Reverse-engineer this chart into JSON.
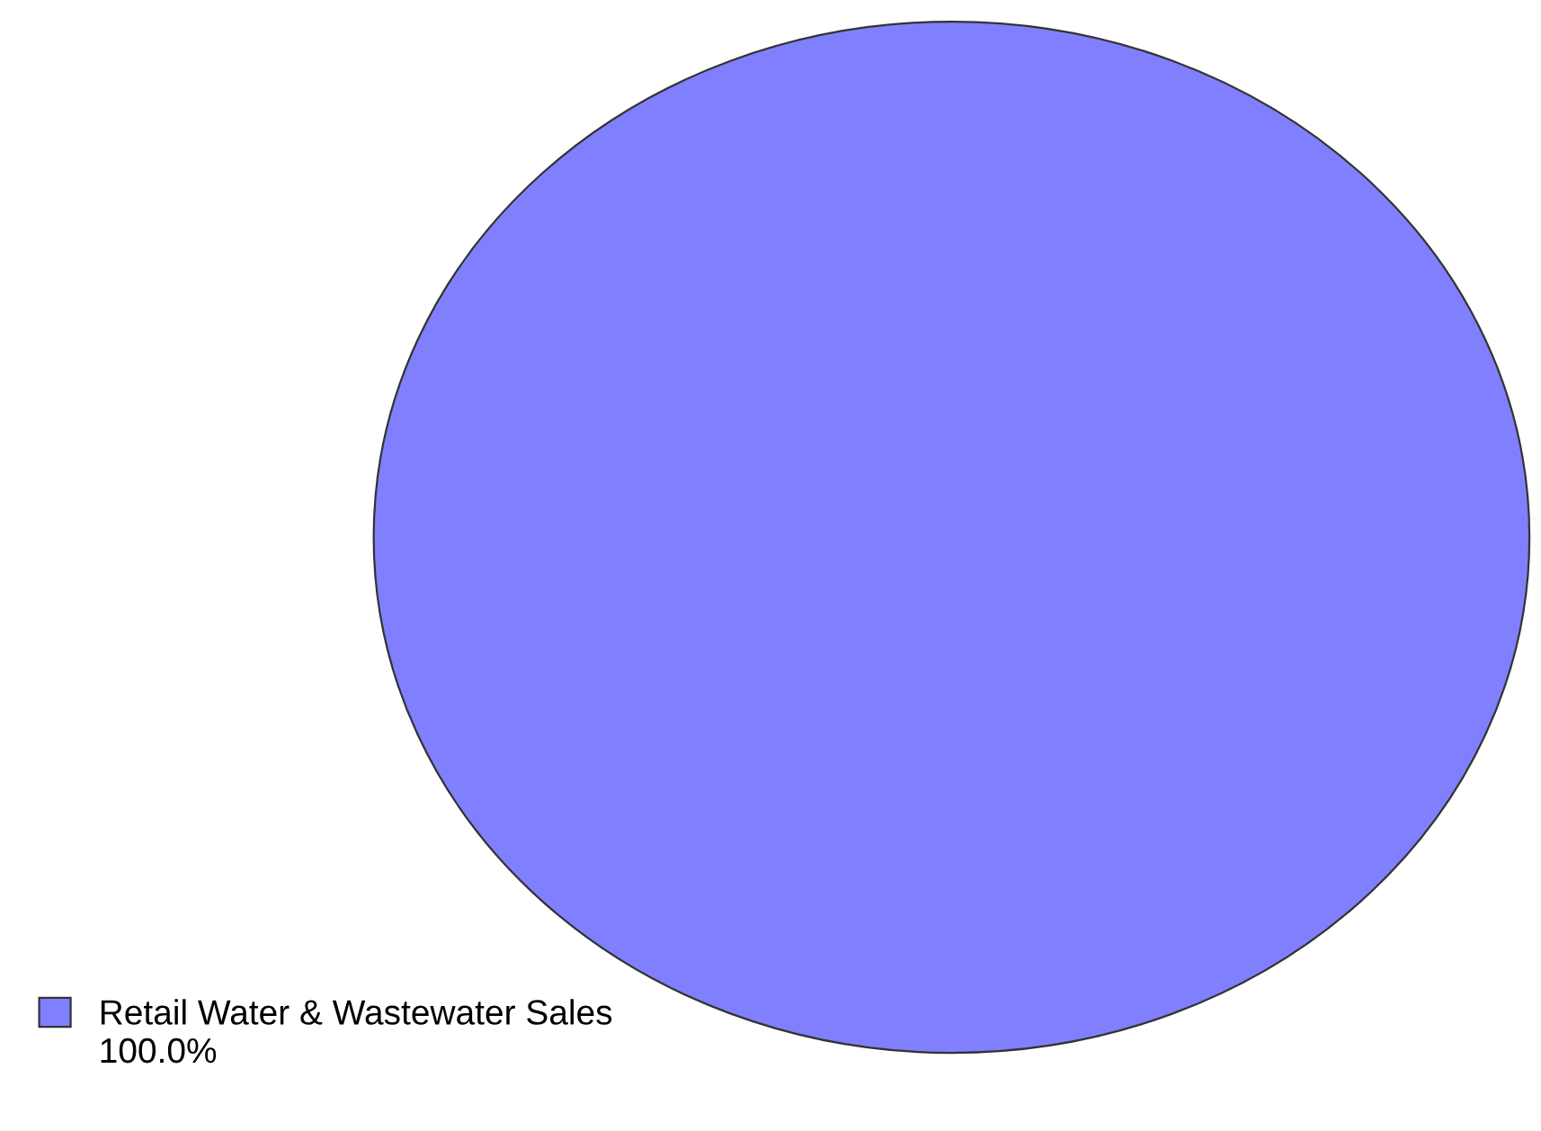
{
  "chart_data": {
    "type": "pie",
    "categories": [
      "Retail Water & Wastewater Sales"
    ],
    "values": [
      100
    ],
    "colors": [
      "#8080ff"
    ],
    "value_labels": [
      "100.0%"
    ],
    "legend": "bottom left"
  }
}
